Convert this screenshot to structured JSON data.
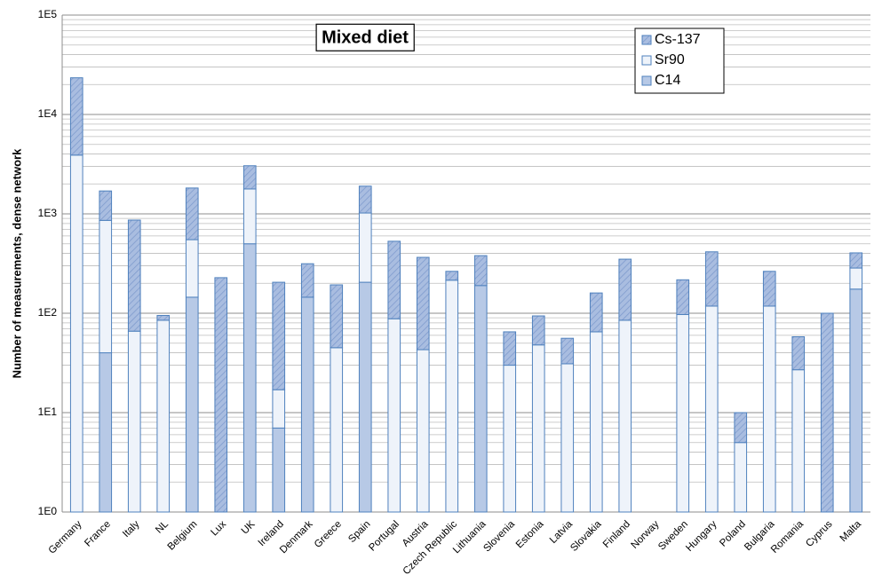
{
  "chart_data": {
    "type": "stacked_bar",
    "title": "Mixed diet",
    "y_label": "Number of measurements, dense network",
    "log_scale": true,
    "grid": true,
    "minor_grid": true,
    "legend": "upper right",
    "categories": [
      "Germany",
      "France",
      "Italy",
      "NL",
      "Belgium",
      "Lux",
      "UK",
      "Ireland",
      "Denmark",
      "Greece",
      "Spain",
      "Portugal",
      "Austria",
      "Czech Republic",
      "Lithuania",
      "Slovenia",
      "Estonia",
      "Latvia",
      "Slovakia",
      "Finland",
      "Norway",
      "Sweden",
      "Hungary",
      "Poland",
      "Bulgaria",
      "Romania",
      "Cyprus",
      "Malta"
    ],
    "series": [
      {
        "name": "C14",
        "color": "#b7c9e6",
        "hatch": false,
        "values": [
          null,
          40,
          null,
          null,
          145,
          null,
          500,
          7,
          145,
          null,
          205,
          null,
          null,
          null,
          190,
          null,
          null,
          null,
          null,
          null,
          null,
          null,
          null,
          null,
          null,
          null,
          null,
          175
        ]
      },
      {
        "name": "Sr90",
        "color": "#eef3fa",
        "hatch": false,
        "values": [
          3900,
          820,
          66,
          85,
          405,
          null,
          1280,
          10,
          null,
          45,
          815,
          88,
          43,
          215,
          null,
          30,
          48,
          31,
          65,
          85,
          null,
          97,
          118,
          5,
          118,
          27,
          null,
          110
        ]
      },
      {
        "name": "Cs-137",
        "color": "#a9bde0",
        "hatch": true,
        "values": [
          19500,
          840,
          800,
          10,
          1270,
          228,
          1270,
          188,
          170,
          148,
          880,
          442,
          322,
          49,
          190,
          35,
          46,
          25,
          95,
          265,
          null,
          120,
          297,
          5,
          146,
          31,
          100,
          120
        ]
      }
    ],
    "ylim": [
      1,
      100000
    ],
    "yticks": [
      {
        "value": 1,
        "label": "1E0"
      },
      {
        "value": 10,
        "label": "1E1"
      },
      {
        "value": 100,
        "label": "1E2"
      },
      {
        "value": 1000,
        "label": "1E3"
      },
      {
        "value": 10000,
        "label": "1E4"
      },
      {
        "value": 100000,
        "label": "1E5"
      }
    ]
  }
}
